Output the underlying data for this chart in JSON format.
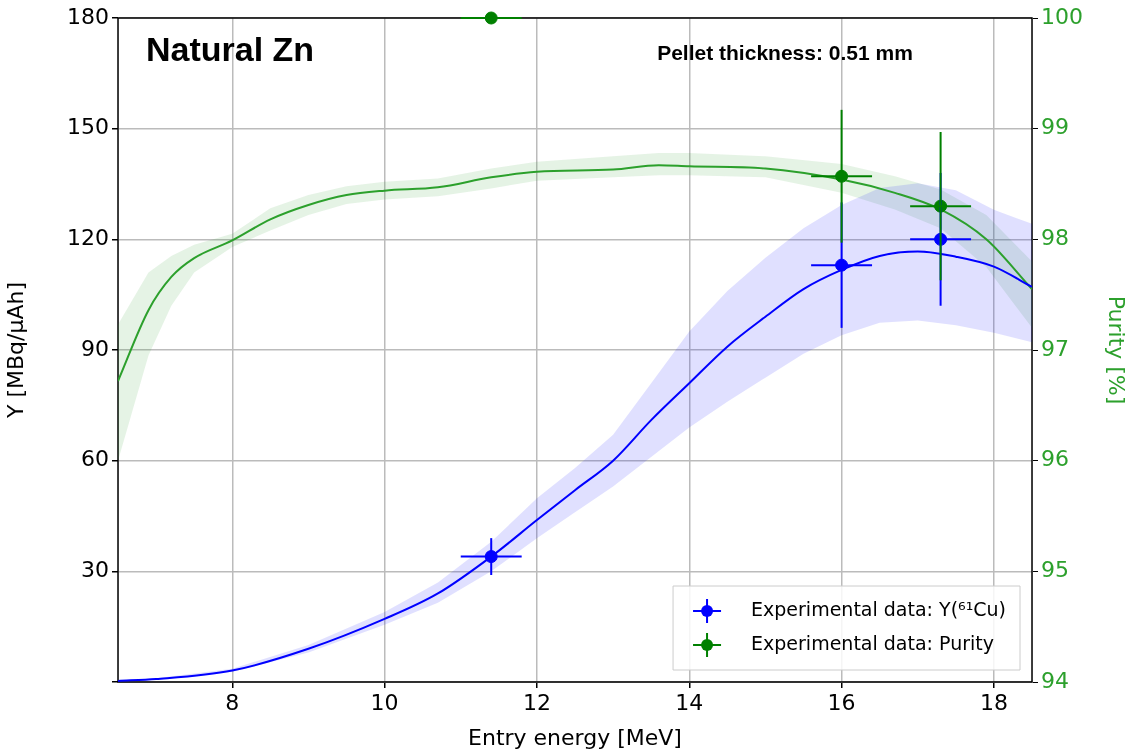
{
  "chart_data": {
    "type": "line",
    "xlabel": "Entry energy [MeV]",
    "ylabel": "Y [MBq/μAh]",
    "y2label": "Purity [%]",
    "annotations": [
      "Natural Zn",
      "Pellet thickness: 0.51 mm"
    ],
    "xlim": [
      6.5,
      18.5
    ],
    "xticks": [
      8,
      10,
      12,
      14,
      16,
      18
    ],
    "ylim": [
      0,
      180
    ],
    "yticks": [
      {
        "value": 0,
        "label": null
      },
      30,
      60,
      90,
      120,
      150,
      180
    ],
    "y2lim": [
      94,
      100
    ],
    "y2ticks": [
      94,
      95,
      96,
      97,
      98,
      99,
      100
    ],
    "grid": true,
    "legend": "bottom right",
    "marker": "circle",
    "line_style": "solid",
    "series": [
      {
        "marker": "none",
        "color": "#0000ff",
        "x": [
          6.5,
          7,
          8,
          9,
          10,
          10.7,
          11.4,
          12,
          12.5,
          13,
          13.5,
          14,
          14.5,
          15,
          15.5,
          16,
          16.5,
          17,
          17.5,
          18,
          18.5
        ],
        "values": [
          0.3,
          0.8,
          3.1,
          9,
          17.1,
          24,
          34,
          43.9,
          52,
          60,
          71,
          81,
          90.9,
          99,
          106.5,
          111.7,
          115.5,
          116.7,
          115.3,
          112.6,
          107.1
        ],
        "lower": [
          0.2,
          0.6,
          2.8,
          8,
          15.5,
          21.5,
          30,
          39,
          46,
          53,
          61,
          69,
          76,
          82.5,
          89,
          94,
          97.4,
          98,
          96.7,
          94.7,
          92.1
        ],
        "upper": [
          0.5,
          1.0,
          3.6,
          10,
          19,
          27,
          38,
          49.8,
          58,
          67,
          81,
          95,
          106,
          115,
          123,
          129.3,
          133.9,
          135.2,
          133.3,
          128,
          124.2
        ]
      },
      {
        "marker": "none",
        "axis": "y2",
        "color": "#2ca02c",
        "x": [
          6.5,
          6.9,
          7.2,
          7.5,
          8,
          8.5,
          9,
          9.5,
          10,
          10.7,
          11.4,
          12,
          13,
          13.6,
          14,
          15,
          16,
          16.7,
          17.3,
          17.9,
          18.5
        ],
        "values": [
          96.72,
          97.36,
          97.66,
          97.83,
          97.99,
          98.18,
          98.31,
          98.4,
          98.44,
          98.47,
          98.56,
          98.61,
          98.63,
          98.67,
          98.66,
          98.64,
          98.54,
          98.42,
          98.27,
          98.0,
          97.55
        ],
        "lower": [
          96.0,
          96.95,
          97.4,
          97.7,
          97.93,
          98.08,
          98.22,
          98.32,
          98.36,
          98.39,
          98.46,
          98.53,
          98.56,
          98.58,
          98.58,
          98.56,
          98.42,
          98.27,
          98.1,
          97.75,
          97.2
        ],
        "upper": [
          97.23,
          97.7,
          97.85,
          97.95,
          98.05,
          98.28,
          98.4,
          98.48,
          98.52,
          98.55,
          98.64,
          98.7,
          98.75,
          98.78,
          98.78,
          98.75,
          98.68,
          98.57,
          98.45,
          98.22,
          97.8
        ]
      },
      {
        "type": "scatter",
        "name": "Experimental data: Y(⁶¹Cu)",
        "color": "#0000ff",
        "x": [
          11.4,
          16,
          17.3
        ],
        "values": [
          34,
          113,
          120
        ],
        "errors": [
          5,
          17,
          18
        ],
        "xerrors": [
          0.4,
          0.4,
          0.4
        ]
      },
      {
        "type": "scatter",
        "axis": "y2",
        "name": "Experimental data: Purity",
        "color": "#008000",
        "x": [
          11.4,
          16,
          17.3
        ],
        "values": [
          100,
          98.57,
          98.3
        ],
        "errors": [
          null,
          0.6,
          0.67
        ],
        "xerrors": [
          0.4,
          0.4,
          0.4
        ]
      }
    ]
  }
}
